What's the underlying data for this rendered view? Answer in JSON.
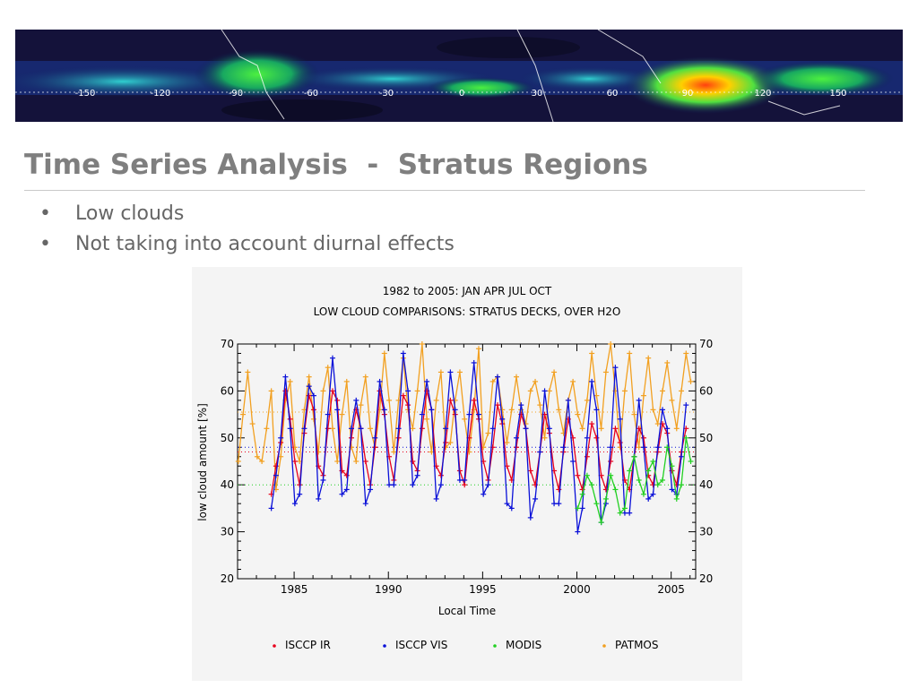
{
  "slide": {
    "title": "Time Series Analysis  -  Stratus Regions",
    "bullets": [
      "Low clouds",
      "Not taking into account diurnal effects"
    ],
    "bullet_char": "•"
  },
  "banner": {
    "longitude_labels": [
      "-150",
      "-120",
      "-90",
      "-60",
      "-30",
      "0",
      "30",
      "60",
      "90",
      "120",
      "150"
    ]
  },
  "colors": {
    "title": "#7f7f7f",
    "text": "#666666",
    "isccp_ir": "#e8001c",
    "isccp_vis": "#0a10d8",
    "modis": "#22d022",
    "patmos": "#f2a020"
  },
  "chart_data": {
    "type": "line",
    "title": "1982 to 2005: JAN APR JUL OCT",
    "subtitle": "LOW CLOUD COMPARISONS: STRATUS DECKS, OVER H2O",
    "xlabel": "Local Time",
    "ylabel": "low cloud amount  [%]",
    "xlim": [
      1982.0,
      2006.3
    ],
    "ylim": [
      20,
      70
    ],
    "xticks": [
      1985,
      1990,
      1995,
      2000,
      2005
    ],
    "yticks": [
      20,
      30,
      40,
      50,
      60,
      70
    ],
    "legend_position": "bottom",
    "grid": false,
    "series": [
      {
        "name": "ISCCP IR",
        "color": "#e8001c",
        "x": [
          1983.79,
          1984.04,
          1984.29,
          1984.54,
          1984.79,
          1985.04,
          1985.29,
          1985.54,
          1985.79,
          1986.04,
          1986.29,
          1986.54,
          1986.79,
          1987.04,
          1987.29,
          1987.54,
          1987.79,
          1988.04,
          1988.29,
          1988.54,
          1988.79,
          1989.04,
          1989.29,
          1989.54,
          1989.79,
          1990.04,
          1990.29,
          1990.54,
          1990.79,
          1991.04,
          1991.29,
          1991.54,
          1991.79,
          1992.04,
          1992.29,
          1992.54,
          1992.79,
          1993.04,
          1993.29,
          1993.54,
          1993.79,
          1994.04,
          1994.29,
          1994.54,
          1994.79,
          1995.04,
          1995.29,
          1995.54,
          1995.79,
          1996.04,
          1996.29,
          1996.54,
          1996.79,
          1997.04,
          1997.29,
          1997.54,
          1997.79,
          1998.04,
          1998.29,
          1998.54,
          1998.79,
          1999.04,
          1999.29,
          1999.54,
          1999.79,
          2000.04,
          2000.29,
          2000.54,
          2000.79,
          2001.04,
          2001.29,
          2001.54,
          2001.79,
          2002.04,
          2002.29,
          2002.54,
          2002.79,
          2003.04,
          2003.29,
          2003.54,
          2003.79,
          2004.04,
          2004.29,
          2004.54,
          2004.79,
          2005.04,
          2005.29,
          2005.54,
          2005.79
        ],
        "y": [
          38,
          44,
          49,
          60,
          54,
          45,
          40,
          51,
          59,
          56,
          44,
          42,
          52,
          60,
          58,
          43,
          42,
          50,
          56,
          52,
          45,
          40,
          48,
          60,
          55,
          46,
          41,
          50,
          59,
          57,
          45,
          43,
          52,
          60,
          56,
          44,
          42,
          49,
          58,
          55,
          43,
          40,
          50,
          58,
          54,
          45,
          41,
          48,
          57,
          53,
          44,
          41,
          48,
          55,
          52,
          43,
          40,
          47,
          55,
          51,
          43,
          39,
          47,
          54,
          50,
          42,
          39,
          46,
          53,
          50,
          42,
          39,
          45,
          52,
          49,
          41,
          39,
          46,
          52,
          50,
          42,
          40,
          47,
          53,
          51,
          43,
          40,
          47,
          52
        ]
      },
      {
        "name": "ISCCP VIS",
        "color": "#0a10d8",
        "x": [
          1983.79,
          1984.04,
          1984.29,
          1984.54,
          1984.79,
          1985.04,
          1985.29,
          1985.54,
          1985.79,
          1986.04,
          1986.29,
          1986.54,
          1986.79,
          1987.04,
          1987.29,
          1987.54,
          1987.79,
          1988.04,
          1988.29,
          1988.54,
          1988.79,
          1989.04,
          1989.29,
          1989.54,
          1989.79,
          1990.04,
          1990.29,
          1990.54,
          1990.79,
          1991.04,
          1991.29,
          1991.54,
          1991.79,
          1992.04,
          1992.29,
          1992.54,
          1992.79,
          1993.04,
          1993.29,
          1993.54,
          1993.79,
          1994.04,
          1994.29,
          1994.54,
          1994.79,
          1995.04,
          1995.29,
          1995.54,
          1995.79,
          1996.04,
          1996.29,
          1996.54,
          1996.79,
          1997.04,
          1997.29,
          1997.54,
          1997.79,
          1998.04,
          1998.29,
          1998.54,
          1998.79,
          1999.04,
          1999.29,
          1999.54,
          1999.79,
          2000.04,
          2000.29,
          2000.54,
          2000.79,
          2001.04,
          2001.29,
          2001.54,
          2001.79,
          2002.04,
          2002.29,
          2002.54,
          2002.79,
          2003.04,
          2003.29,
          2003.54,
          2003.79,
          2004.04,
          2004.29,
          2004.54,
          2004.79,
          2005.04,
          2005.29,
          2005.54,
          2005.79
        ],
        "y": [
          35,
          42,
          50,
          63,
          52,
          36,
          38,
          52,
          61,
          59,
          37,
          41,
          55,
          67,
          56,
          38,
          39,
          52,
          58,
          52,
          36,
          39,
          50,
          62,
          56,
          40,
          40,
          52,
          68,
          60,
          40,
          42,
          55,
          62,
          56,
          37,
          40,
          52,
          64,
          56,
          41,
          41,
          55,
          66,
          55,
          38,
          40,
          52,
          63,
          54,
          36,
          35,
          50,
          57,
          52,
          33,
          37,
          47,
          60,
          52,
          36,
          36,
          48,
          58,
          45,
          30,
          35,
          50,
          62,
          56,
          32,
          36,
          48,
          65,
          54,
          34,
          34,
          46,
          58,
          48,
          37,
          38,
          48,
          56,
          52,
          39,
          38,
          46,
          57
        ]
      },
      {
        "name": "MODIS",
        "color": "#22d022",
        "x": [
          2000.04,
          2000.29,
          2000.54,
          2000.79,
          2001.04,
          2001.29,
          2001.54,
          2001.79,
          2002.04,
          2002.29,
          2002.54,
          2002.79,
          2003.04,
          2003.29,
          2003.54,
          2003.79,
          2004.04,
          2004.29,
          2004.54,
          2004.79,
          2005.04,
          2005.29,
          2005.54,
          2005.79,
          2006.04
        ],
        "y": [
          35,
          38,
          42,
          40,
          36,
          32,
          37,
          42,
          39,
          34,
          35,
          43,
          46,
          41,
          38,
          43,
          45,
          40,
          41,
          48,
          44,
          37,
          40,
          50,
          45
        ]
      },
      {
        "name": "PATMOS",
        "color": "#f2a020",
        "x": [
          1982.04,
          1982.29,
          1982.54,
          1982.79,
          1983.04,
          1983.29,
          1983.54,
          1983.79,
          1984.04,
          1984.29,
          1984.54,
          1984.79,
          1985.04,
          1985.29,
          1985.54,
          1985.79,
          1986.04,
          1986.29,
          1986.54,
          1986.79,
          1987.04,
          1987.29,
          1987.54,
          1987.79,
          1988.04,
          1988.29,
          1988.54,
          1988.79,
          1989.04,
          1989.29,
          1989.54,
          1989.79,
          1990.04,
          1990.29,
          1990.54,
          1990.79,
          1991.04,
          1991.29,
          1991.54,
          1991.79,
          1992.04,
          1992.29,
          1992.54,
          1992.79,
          1993.04,
          1993.29,
          1993.54,
          1993.79,
          1994.04,
          1994.29,
          1994.54,
          1994.79,
          1995.04,
          1995.29,
          1995.54,
          1995.79,
          1996.04,
          1996.29,
          1996.54,
          1996.79,
          1997.04,
          1997.29,
          1997.54,
          1997.79,
          1998.04,
          1998.29,
          1998.54,
          1998.79,
          1999.04,
          1999.29,
          1999.54,
          1999.79,
          2000.04,
          2000.29,
          2000.54,
          2000.79,
          2001.04,
          2001.29,
          2001.54,
          2001.79,
          2002.04,
          2002.29,
          2002.54,
          2002.79,
          2003.04,
          2003.29,
          2003.54,
          2003.79,
          2004.04,
          2004.29,
          2004.54,
          2004.79,
          2005.04,
          2005.29,
          2005.54,
          2005.79,
          2006.04
        ],
        "y": [
          45,
          55,
          64,
          53,
          46,
          45,
          52,
          60,
          39,
          46,
          58,
          62,
          48,
          45,
          56,
          63,
          54,
          47,
          60,
          65,
          52,
          45,
          55,
          62,
          48,
          45,
          57,
          63,
          52,
          48,
          56,
          68,
          58,
          47,
          58,
          67,
          56,
          52,
          60,
          70,
          54,
          47,
          58,
          64,
          48,
          49,
          58,
          64,
          54,
          47,
          56,
          69,
          48,
          51,
          62,
          63,
          56,
          49,
          56,
          63,
          56,
          53,
          60,
          62,
          57,
          50,
          60,
          64,
          56,
          51,
          58,
          62,
          55,
          52,
          58,
          68,
          59,
          52,
          64,
          70,
          60,
          48,
          60,
          68,
          55,
          48,
          59,
          67,
          56,
          53,
          60,
          66,
          58,
          52,
          60,
          68,
          62
        ]
      }
    ],
    "reference_lines": [
      {
        "series": "ISCCP IR",
        "y": 47
      },
      {
        "series": "ISCCP VIS",
        "y": 48
      },
      {
        "series": "PATMOS",
        "y": 55.5
      },
      {
        "series": "MODIS",
        "y": 40
      }
    ]
  }
}
